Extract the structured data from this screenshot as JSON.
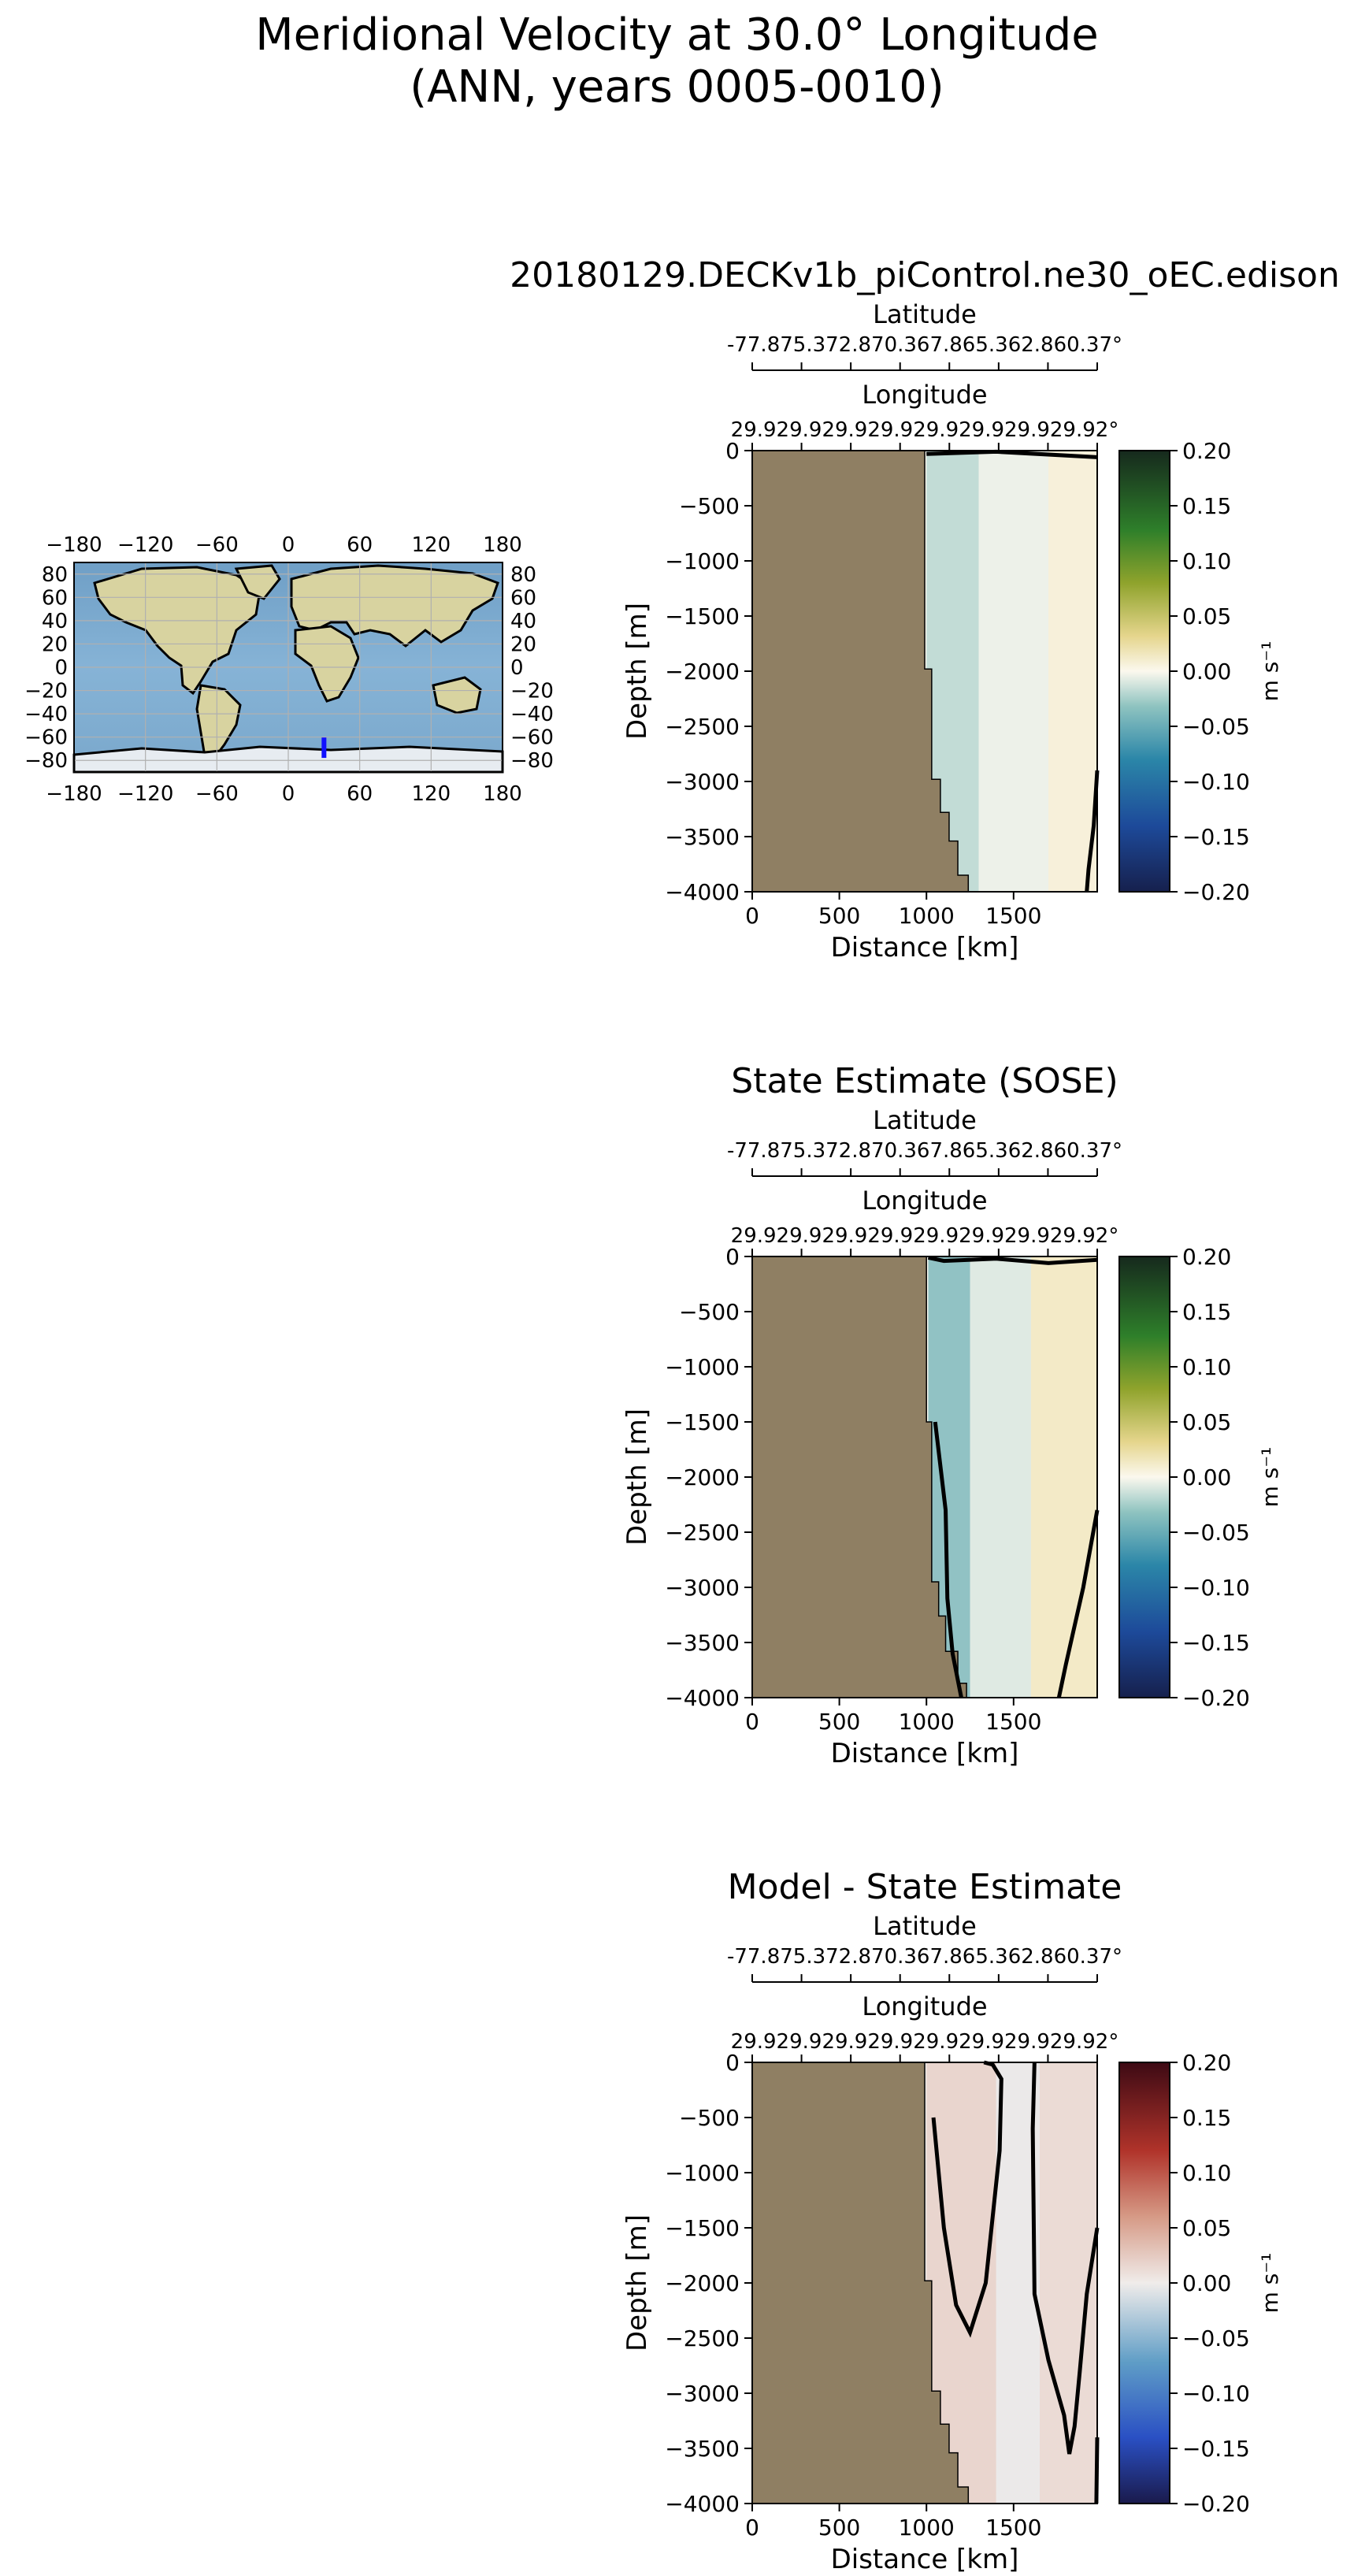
{
  "figure": {
    "title_line1": "Meridional Velocity at 30.0° Longitude",
    "title_line2": "(ANN, years 0005-0010)"
  },
  "map": {
    "lon_ticks": [
      "−180",
      "−120",
      "−60",
      "0",
      "60",
      "120",
      "180"
    ],
    "lat_ticks": [
      "80",
      "60",
      "40",
      "20",
      "0",
      "−20",
      "−40",
      "−60",
      "−80"
    ],
    "transect": {
      "lon": 30.0,
      "lat_from": -77.87,
      "lat_to": -60.37
    },
    "colors": {
      "ocean": "#7faacf",
      "land": "#d9d5a6",
      "ice": "#e8edf2",
      "coast": "#000000",
      "grid": "#b0b0b0",
      "transect": "#1010ff"
    }
  },
  "chart_data": [
    {
      "type": "heatmap",
      "title": "20180129.DECKv1b_piControl.ne30_oEC.edison",
      "xlabel": "Distance [km]",
      "ylabel": "Depth [m]",
      "x_ticks": [
        "0",
        "500",
        "1000",
        "1500"
      ],
      "y_ticks": [
        "0",
        "−500",
        "−1000",
        "−1500",
        "−2000",
        "−2500",
        "−3000",
        "−3500",
        "−4000"
      ],
      "xlim": [
        0,
        1980
      ],
      "ylim": [
        -4000,
        0
      ],
      "top_axis1_label": "Latitude",
      "top_axis1_ticks": "-77.875.372.870.367.865.362.860.37°",
      "top_axis2_label": "Longitude",
      "top_axis2_ticks": "29.929.929.929.929.929.929.929.92°",
      "colorbar": {
        "label": "m s⁻¹",
        "ticks": [
          "0.20",
          "0.15",
          "0.10",
          "0.05",
          "0.00",
          "−0.05",
          "−0.10",
          "−0.15",
          "−0.20"
        ],
        "vmin": -0.2,
        "vmax": 0.2,
        "cmap": "diverging_ocean"
      },
      "land_color": "#8f7f63",
      "bathymetry": [
        [
          0,
          0
        ],
        [
          990,
          0
        ],
        [
          990,
          -1980
        ],
        [
          1030,
          -1980
        ],
        [
          1030,
          -2980
        ],
        [
          1080,
          -2980
        ],
        [
          1080,
          -3280
        ],
        [
          1130,
          -3280
        ],
        [
          1130,
          -3540
        ],
        [
          1180,
          -3540
        ],
        [
          1180,
          -3850
        ],
        [
          1240,
          -3850
        ],
        [
          1240,
          -4000
        ],
        [
          0,
          -4000
        ]
      ],
      "field_bands": [
        {
          "x0": 1000,
          "x1": 1300,
          "value": -0.02
        },
        {
          "x0": 1300,
          "x1": 1700,
          "value": -0.005
        },
        {
          "x0": 1700,
          "x1": 1980,
          "value": 0.008
        }
      ],
      "zero_contours": [
        [
          [
            1000,
            -30
          ],
          [
            1400,
            -10
          ],
          [
            1980,
            -60
          ]
        ],
        [
          [
            1980,
            -2900
          ],
          [
            1960,
            -3400
          ],
          [
            1930,
            -3800
          ],
          [
            1920,
            -4000
          ]
        ]
      ]
    },
    {
      "type": "heatmap",
      "title": "State Estimate (SOSE)",
      "xlabel": "Distance [km]",
      "ylabel": "Depth [m]",
      "x_ticks": [
        "0",
        "500",
        "1000",
        "1500"
      ],
      "y_ticks": [
        "0",
        "−500",
        "−1000",
        "−1500",
        "−2000",
        "−2500",
        "−3000",
        "−3500",
        "−4000"
      ],
      "xlim": [
        0,
        1980
      ],
      "ylim": [
        -4000,
        0
      ],
      "top_axis1_label": "Latitude",
      "top_axis1_ticks": "-77.875.372.870.367.865.362.860.37°",
      "top_axis2_label": "Longitude",
      "top_axis2_ticks": "29.929.929.929.929.929.929.929.92°",
      "colorbar": {
        "label": "m s⁻¹",
        "ticks": [
          "0.20",
          "0.15",
          "0.10",
          "0.05",
          "0.00",
          "−0.05",
          "−0.10",
          "−0.15",
          "−0.20"
        ],
        "vmin": -0.2,
        "vmax": 0.2,
        "cmap": "diverging_ocean"
      },
      "land_color": "#8f7f63",
      "bathymetry": [
        [
          0,
          0
        ],
        [
          1000,
          0
        ],
        [
          1000,
          -1500
        ],
        [
          1030,
          -1500
        ],
        [
          1030,
          -2950
        ],
        [
          1070,
          -2950
        ],
        [
          1070,
          -3260
        ],
        [
          1110,
          -3260
        ],
        [
          1110,
          -3580
        ],
        [
          1180,
          -3580
        ],
        [
          1180,
          -3870
        ],
        [
          1230,
          -3870
        ],
        [
          1230,
          -4000
        ],
        [
          0,
          -4000
        ]
      ],
      "field_bands": [
        {
          "x0": 1010,
          "x1": 1250,
          "value": -0.04
        },
        {
          "x0": 1250,
          "x1": 1600,
          "value": -0.01
        },
        {
          "x0": 1600,
          "x1": 1980,
          "value": 0.015
        }
      ],
      "zero_contours": [
        [
          [
            1010,
            -10
          ],
          [
            1100,
            -40
          ],
          [
            1400,
            -20
          ],
          [
            1700,
            -60
          ],
          [
            1980,
            -30
          ]
        ],
        [
          [
            1050,
            -1500
          ],
          [
            1110,
            -2300
          ],
          [
            1120,
            -3100
          ],
          [
            1150,
            -3600
          ],
          [
            1200,
            -4000
          ]
        ],
        [
          [
            1980,
            -2300
          ],
          [
            1900,
            -3000
          ],
          [
            1800,
            -3700
          ],
          [
            1760,
            -4000
          ]
        ]
      ]
    },
    {
      "type": "heatmap",
      "title": "Model - State Estimate",
      "xlabel": "Distance [km]",
      "ylabel": "Depth [m]",
      "x_ticks": [
        "0",
        "500",
        "1000",
        "1500"
      ],
      "y_ticks": [
        "0",
        "−500",
        "−1000",
        "−1500",
        "−2000",
        "−2500",
        "−3000",
        "−3500",
        "−4000"
      ],
      "xlim": [
        0,
        1980
      ],
      "ylim": [
        -4000,
        0
      ],
      "top_axis1_label": "Latitude",
      "top_axis1_ticks": "-77.875.372.870.367.865.362.860.37°",
      "top_axis2_label": "Longitude",
      "top_axis2_ticks": "29.929.929.929.929.929.929.929.92°",
      "colorbar": {
        "label": "m s⁻¹",
        "ticks": [
          "0.20",
          "0.15",
          "0.10",
          "0.05",
          "0.00",
          "−0.05",
          "−0.10",
          "−0.15",
          "−0.20"
        ],
        "vmin": -0.2,
        "vmax": 0.2,
        "cmap": "diverging_balance"
      },
      "land_color": "#8f7f63",
      "bathymetry": [
        [
          0,
          0
        ],
        [
          990,
          0
        ],
        [
          990,
          -1980
        ],
        [
          1030,
          -1980
        ],
        [
          1030,
          -2980
        ],
        [
          1080,
          -2980
        ],
        [
          1080,
          -3280
        ],
        [
          1130,
          -3280
        ],
        [
          1130,
          -3540
        ],
        [
          1180,
          -3540
        ],
        [
          1180,
          -3850
        ],
        [
          1240,
          -3850
        ],
        [
          1240,
          -4000
        ],
        [
          0,
          -4000
        ]
      ],
      "field_bands": [
        {
          "x0": 1000,
          "x1": 1400,
          "value": 0.02
        },
        {
          "x0": 1400,
          "x1": 1650,
          "value": -0.003
        },
        {
          "x0": 1650,
          "x1": 1980,
          "value": 0.015
        }
      ],
      "zero_contours": [
        [
          [
            1040,
            -500
          ],
          [
            1100,
            -1500
          ],
          [
            1170,
            -2200
          ],
          [
            1250,
            -2450
          ],
          [
            1340,
            -2000
          ],
          [
            1380,
            -1400
          ],
          [
            1420,
            -800
          ],
          [
            1430,
            -150
          ],
          [
            1380,
            -20
          ],
          [
            1330,
            0
          ]
        ],
        [
          [
            1620,
            0
          ],
          [
            1610,
            -600
          ],
          [
            1620,
            -2100
          ],
          [
            1700,
            -2700
          ],
          [
            1790,
            -3200
          ],
          [
            1820,
            -3550
          ],
          [
            1850,
            -3300
          ],
          [
            1880,
            -2800
          ],
          [
            1920,
            -2100
          ],
          [
            1980,
            -1500
          ]
        ],
        [
          [
            1980,
            -3400
          ],
          [
            1975,
            -4000
          ]
        ]
      ]
    }
  ]
}
